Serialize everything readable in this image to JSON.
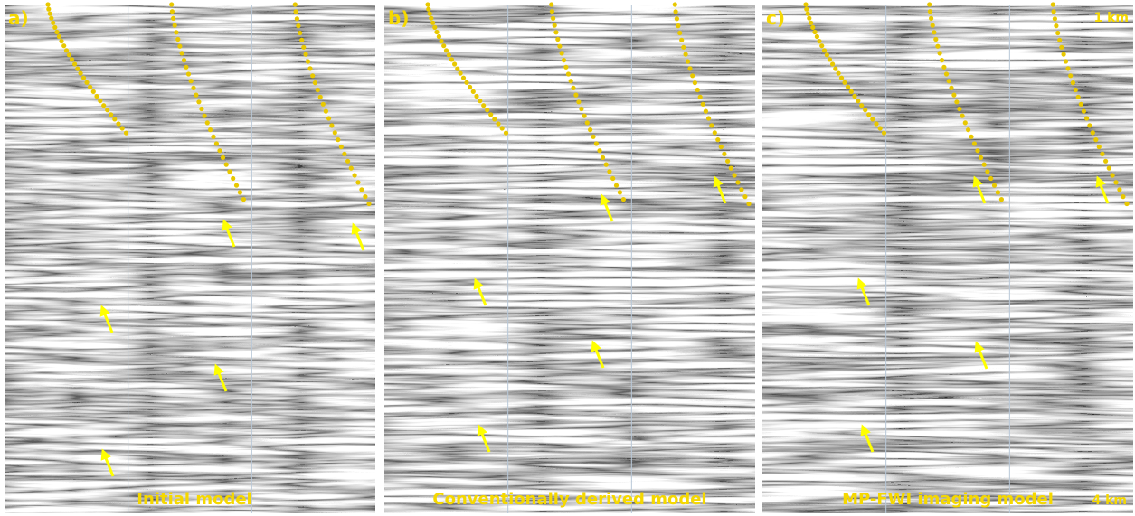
{
  "panels": [
    {
      "label": "a)",
      "caption": "Initial model"
    },
    {
      "label": "b)",
      "caption": "Conventionally derived model"
    },
    {
      "label": "c)",
      "caption": "MP-FWI imaging model"
    }
  ],
  "scale": {
    "top": "1 km",
    "bottom": "4 km"
  }
}
